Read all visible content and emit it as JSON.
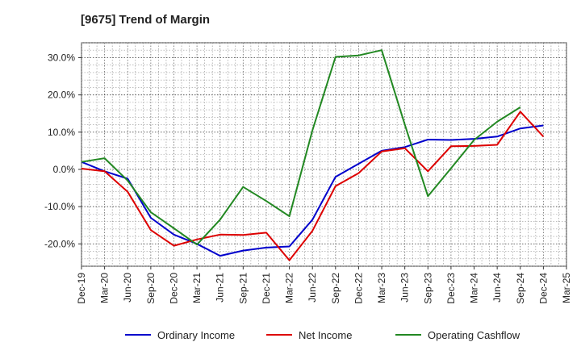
{
  "title": "[9675]  Trend of Margin",
  "chart_data": {
    "type": "line",
    "title": "[9675]  Trend of Margin",
    "xlabel": "",
    "ylabel": "",
    "x": [
      "Dec-19",
      "Mar-20",
      "Jun-20",
      "Sep-20",
      "Dec-20",
      "Mar-21",
      "Jun-21",
      "Sep-21",
      "Dec-21",
      "Mar-22",
      "Jun-22",
      "Sep-22",
      "Dec-22",
      "Mar-23",
      "Jun-23",
      "Sep-23",
      "Dec-23",
      "Mar-24",
      "Jun-24",
      "Sep-24",
      "Dec-24",
      "Mar-25"
    ],
    "yticks": [
      30,
      20,
      10,
      0,
      -10,
      -20
    ],
    "ytick_labels": [
      "30.0%",
      "20.0%",
      "10.0%",
      "0.0%",
      "-10.0%",
      "-20.0%"
    ],
    "ylim": [
      -26,
      34
    ],
    "grid": true,
    "legend_position": "bottom",
    "series": [
      {
        "name": "Ordinary Income",
        "color": "#0000cc",
        "values": [
          2.0,
          -0.5,
          -2.5,
          -13.0,
          -17.5,
          -20.0,
          -23.2,
          -21.8,
          -21.0,
          -20.7,
          -13.5,
          -2.0,
          1.5,
          5.0,
          6.0,
          8.0,
          7.9,
          8.2,
          8.8,
          11.0,
          11.8,
          null
        ]
      },
      {
        "name": "Net Income",
        "color": "#dd0000",
        "values": [
          0.2,
          -0.5,
          -6.0,
          -16.3,
          -20.5,
          -18.8,
          -17.5,
          -17.6,
          -17.0,
          -24.4,
          -16.5,
          -4.5,
          -1.0,
          4.8,
          5.7,
          -0.5,
          6.2,
          6.3,
          6.6,
          15.5,
          8.8,
          null
        ]
      },
      {
        "name": "Operating Cashflow",
        "color": "#228822",
        "values": [
          2.0,
          3.0,
          -3.0,
          -11.5,
          -15.8,
          -20.2,
          -13.5,
          -4.7,
          -8.5,
          -12.6,
          10.5,
          30.2,
          30.6,
          32.0,
          12.0,
          -7.2,
          0.3,
          7.9,
          12.8,
          16.7,
          null,
          null
        ]
      }
    ]
  }
}
